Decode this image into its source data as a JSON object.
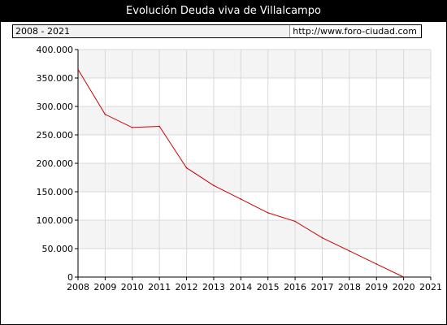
{
  "header": {
    "title": "Evolución Deuda viva de Villalcampo",
    "period": "2008 - 2021",
    "source": "http://www.foro-ciudad.com"
  },
  "colors": {
    "line": "#cc0000",
    "band": "#f4f4f4",
    "grid": "#d9d9d9",
    "title_bg": "#000000"
  },
  "chart_data": {
    "type": "line",
    "title": "Evolución Deuda viva de Villalcampo",
    "xlabel": "",
    "ylabel": "",
    "xlim": [
      2008,
      2021
    ],
    "ylim": [
      0,
      400000
    ],
    "grid": true,
    "x_ticks": [
      "2008",
      "2009",
      "2010",
      "2011",
      "2012",
      "2013",
      "2014",
      "2015",
      "2016",
      "2017",
      "2018",
      "2019",
      "2020",
      "2021"
    ],
    "y_ticks": [
      "0",
      "50.000",
      "100.000",
      "150.000",
      "200.000",
      "250.000",
      "300.000",
      "350.000",
      "400.000"
    ],
    "series": [
      {
        "x": [
          2008,
          2009,
          2010,
          2011,
          2012,
          2013,
          2014,
          2015,
          2016,
          2017,
          2018,
          2019,
          2020
        ],
        "values": [
          365000,
          286000,
          263000,
          265000,
          192000,
          161000,
          137000,
          113000,
          98000,
          69000,
          46000,
          23000,
          0
        ]
      }
    ]
  }
}
